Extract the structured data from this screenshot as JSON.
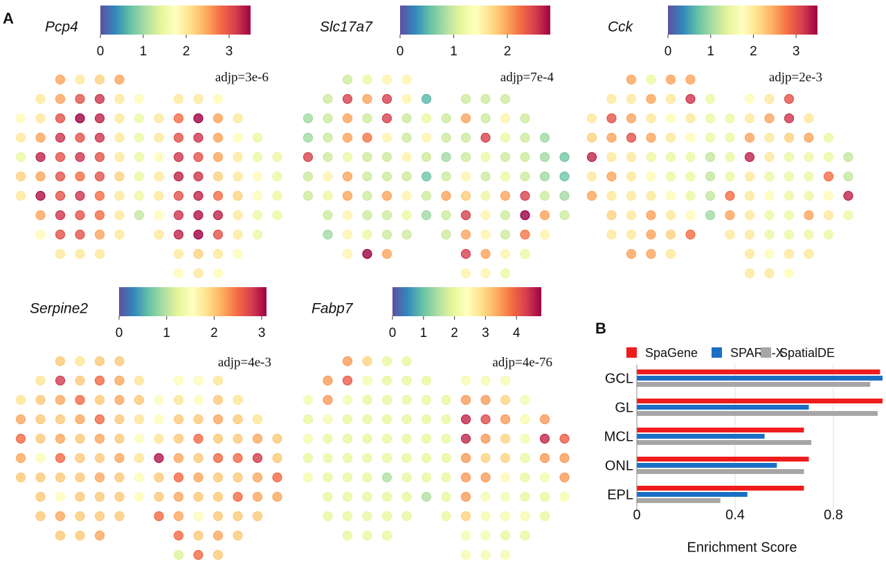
{
  "labels": {
    "a": "A",
    "b": "B"
  },
  "chart_data": [
    {
      "type": "spatial",
      "title": "Pcp4",
      "annotation": "adjp=3e-6",
      "clim": [
        0,
        3.5
      ],
      "cticks": [
        0,
        1,
        2,
        3
      ],
      "rows": [
        [
          null,
          null,
          2.5,
          2,
          2.2,
          2.5,
          null,
          null,
          null,
          null,
          null,
          null,
          null,
          null
        ],
        [
          null,
          2,
          2.5,
          3,
          3.2,
          2,
          1.8,
          null,
          2,
          2,
          1.8,
          null,
          null,
          null
        ],
        [
          1.8,
          2,
          3,
          3.5,
          3.3,
          2,
          1.5,
          2,
          2.8,
          3.5,
          2.5,
          2,
          null,
          null
        ],
        [
          2,
          2.5,
          3.2,
          3,
          3.2,
          2,
          1.5,
          2,
          3,
          3.2,
          2.5,
          1.8,
          1.5,
          null
        ],
        [
          1.5,
          3.3,
          3,
          3.2,
          3,
          2,
          1.5,
          1.8,
          3.2,
          3,
          2.5,
          2,
          1.5,
          1.5
        ],
        [
          2.2,
          2.5,
          3,
          2.8,
          3,
          2.2,
          1.5,
          2,
          3.3,
          3.2,
          2.2,
          2,
          1.8,
          1.5
        ],
        [
          2,
          3.4,
          3,
          3.2,
          2.8,
          2,
          1.5,
          2,
          3,
          3.3,
          2.8,
          2.2,
          1.8,
          1.5
        ],
        [
          null,
          2.5,
          3.2,
          3,
          2.8,
          2,
          1.2,
          1.8,
          3.2,
          3.4,
          3.3,
          2,
          1.5,
          1.5
        ],
        [
          null,
          1.8,
          3,
          3,
          2.5,
          2,
          null,
          2,
          3.3,
          3.5,
          3,
          2,
          1.5,
          null
        ],
        [
          null,
          null,
          2,
          2,
          2,
          null,
          null,
          null,
          2,
          2.2,
          2,
          1.8,
          null,
          null
        ],
        [
          null,
          null,
          null,
          null,
          null,
          null,
          null,
          null,
          1.8,
          2,
          1.8,
          null,
          null,
          null
        ]
      ]
    },
    {
      "type": "spatial",
      "title": "Slc17a7",
      "annotation": "adjp=7e-4",
      "clim": [
        0,
        2.8
      ],
      "cticks": [
        0,
        1,
        2
      ],
      "rows": [
        [
          null,
          null,
          1,
          1.2,
          1.5,
          1.5,
          null,
          null,
          null,
          null,
          null,
          null,
          null,
          null
        ],
        [
          null,
          1,
          2.5,
          2,
          2.5,
          1.5,
          0.5,
          null,
          1,
          1,
          1,
          null,
          null,
          null
        ],
        [
          0.8,
          1,
          2,
          1,
          2.5,
          1,
          1.2,
          1,
          2,
          1,
          1.5,
          1,
          null,
          null
        ],
        [
          0.8,
          1,
          2,
          2.2,
          1.5,
          1,
          1.5,
          1,
          1,
          2.5,
          1.2,
          1,
          0.8,
          null
        ],
        [
          2.5,
          1,
          1.2,
          1,
          1,
          1.5,
          1,
          0.8,
          1,
          1.2,
          1,
          1,
          0.8,
          0.6
        ],
        [
          1,
          1.5,
          2,
          1,
          1,
          1,
          0.6,
          1,
          1.5,
          1,
          1.2,
          1,
          0.8,
          0.6
        ],
        [
          1,
          1.2,
          2,
          1,
          2,
          1.5,
          1,
          2,
          1.8,
          1.2,
          2,
          2.5,
          1,
          0.8
        ],
        [
          null,
          1,
          1.5,
          1,
          1,
          1.2,
          0.8,
          1,
          2.5,
          1.5,
          1,
          2.8,
          2,
          1
        ],
        [
          null,
          0.8,
          1.5,
          1.2,
          1,
          1,
          null,
          1,
          2,
          1.5,
          1,
          2.2,
          1.5,
          null
        ],
        [
          null,
          null,
          1.5,
          2.8,
          2,
          null,
          null,
          null,
          2.5,
          2,
          1.5,
          1.2,
          null,
          null
        ],
        [
          null,
          null,
          null,
          null,
          null,
          null,
          null,
          null,
          1.5,
          1.5,
          1.2,
          null,
          null,
          null
        ]
      ]
    },
    {
      "type": "spatial",
      "title": "Cck",
      "annotation": "adjp=2e-3",
      "clim": [
        0,
        3.5
      ],
      "cticks": [
        0,
        1,
        2,
        3
      ],
      "rows": [
        [
          null,
          null,
          2.5,
          1.5,
          2.5,
          2.5,
          null,
          null,
          null,
          null,
          null,
          null,
          null,
          null
        ],
        [
          null,
          2,
          2,
          2.5,
          2,
          3.2,
          1.5,
          null,
          1.8,
          2,
          3,
          null,
          null,
          null
        ],
        [
          2,
          3,
          2.5,
          2,
          1.8,
          2,
          1.5,
          1.5,
          2,
          2.5,
          3.2,
          2,
          null,
          null
        ],
        [
          2.2,
          2.5,
          3,
          2.5,
          2,
          1.8,
          1.5,
          1.5,
          2.5,
          2,
          2.2,
          2.5,
          1.5,
          null
        ],
        [
          3.3,
          2,
          2,
          1.5,
          1.5,
          1.5,
          1.2,
          1.5,
          3.3,
          2,
          1.5,
          1.5,
          1.5,
          1.2
        ],
        [
          2,
          2.5,
          2,
          1.8,
          1.5,
          1.5,
          1.2,
          1.5,
          2,
          1.5,
          1.5,
          1.5,
          2.8,
          1.2
        ],
        [
          2.5,
          2,
          2,
          2,
          1.8,
          1.5,
          1.2,
          2.8,
          2,
          1.8,
          1.5,
          1.5,
          1.8,
          3.3
        ],
        [
          null,
          2.2,
          2,
          2.5,
          2,
          1.8,
          1,
          2.5,
          2,
          1.5,
          1.5,
          2.5,
          2,
          1.5
        ],
        [
          null,
          2,
          2,
          2.5,
          2.2,
          2.8,
          null,
          2,
          2,
          1.5,
          1.5,
          1.5,
          1.5,
          null
        ],
        [
          null,
          null,
          2.5,
          2.5,
          2,
          null,
          null,
          null,
          2,
          1.8,
          2,
          2,
          null,
          null
        ],
        [
          null,
          null,
          null,
          null,
          null,
          null,
          null,
          null,
          2,
          2,
          1.8,
          null,
          null,
          null
        ]
      ]
    },
    {
      "type": "spatial",
      "title": "Serpine2",
      "annotation": "adjp=4e-3",
      "clim": [
        0,
        3.1
      ],
      "cticks": [
        0,
        1,
        2,
        3
      ],
      "rows": [
        [
          null,
          null,
          2,
          1.8,
          2,
          2,
          null,
          null,
          null,
          null,
          null,
          null,
          null,
          null
        ],
        [
          null,
          1.8,
          2.8,
          2,
          2.5,
          2.2,
          1.8,
          null,
          1.5,
          1.5,
          1.8,
          null,
          null,
          null
        ],
        [
          1.8,
          2,
          2.2,
          2.5,
          2,
          2.2,
          2,
          1.5,
          1.8,
          1.5,
          2,
          1.8,
          null,
          null
        ],
        [
          2.2,
          2,
          2,
          2.2,
          2.5,
          2,
          1.8,
          1.5,
          2,
          2,
          2.2,
          2,
          1.8,
          null
        ],
        [
          2.5,
          2,
          2.2,
          2,
          2.2,
          2,
          1.5,
          1.8,
          2,
          2.5,
          2,
          2,
          2.2,
          2
        ],
        [
          2.2,
          1.5,
          2.5,
          2,
          2,
          2.2,
          1.8,
          3,
          2.2,
          2,
          2.5,
          2.5,
          2.8,
          2
        ],
        [
          2,
          2,
          2,
          2,
          2.2,
          2,
          1.5,
          2,
          2.5,
          2.2,
          2,
          2,
          2.2,
          2.5
        ],
        [
          null,
          2,
          1.5,
          2,
          2,
          2,
          1.5,
          2,
          2.2,
          2,
          2,
          2.5,
          2.2,
          2.2
        ],
        [
          null,
          2,
          2.2,
          2,
          2,
          2,
          null,
          2.5,
          2.2,
          1.5,
          2,
          2,
          2,
          null
        ],
        [
          null,
          null,
          2,
          2,
          2.2,
          null,
          null,
          null,
          2.5,
          2,
          2.2,
          2,
          null,
          null
        ],
        [
          null,
          null,
          null,
          null,
          null,
          null,
          null,
          null,
          1.2,
          2.5,
          2,
          null,
          null,
          null
        ]
      ]
    },
    {
      "type": "spatial",
      "title": "Fabp7",
      "annotation": "adjp=4e-76",
      "clim": [
        0,
        4.8
      ],
      "cticks": [
        0,
        1,
        2,
        3,
        4
      ],
      "rows": [
        [
          null,
          null,
          3.5,
          3,
          2,
          2,
          null,
          null,
          null,
          null,
          null,
          null,
          null,
          null
        ],
        [
          null,
          3.5,
          4,
          2.2,
          2,
          2,
          2,
          null,
          2.2,
          2.2,
          2.2,
          null,
          null,
          null
        ],
        [
          2.2,
          3.5,
          2.2,
          2,
          2,
          2,
          2,
          2,
          3.5,
          3.5,
          3,
          2.2,
          null,
          null
        ],
        [
          2,
          2.2,
          2,
          2,
          2,
          2,
          2,
          2,
          4.5,
          4.2,
          3.5,
          2.2,
          3.5,
          null
        ],
        [
          2.2,
          2,
          2,
          2,
          2,
          2,
          2,
          2,
          4.5,
          3.5,
          3,
          2.2,
          4.5,
          4
        ],
        [
          2,
          2,
          2,
          2,
          2,
          2,
          2,
          2,
          3.5,
          3,
          3,
          2,
          3.5,
          3.5
        ],
        [
          2.2,
          2,
          2,
          2,
          1.5,
          2,
          2,
          2,
          3.5,
          3.5,
          2.5,
          2,
          2.2,
          3.5
        ],
        [
          null,
          2,
          2,
          2,
          2,
          2,
          1.5,
          2,
          3.5,
          2.2,
          2.2,
          2,
          2,
          2.2
        ],
        [
          null,
          2,
          2,
          2,
          2,
          2,
          null,
          2,
          3,
          2.2,
          2.2,
          2.2,
          2,
          null
        ],
        [
          null,
          null,
          2,
          2,
          2,
          null,
          null,
          null,
          2.2,
          2.2,
          2,
          2,
          null,
          null
        ],
        [
          null,
          null,
          null,
          null,
          null,
          null,
          null,
          null,
          2.2,
          2.2,
          2.2,
          null,
          null,
          null
        ]
      ]
    },
    {
      "type": "bar",
      "orientation": "horizontal",
      "categories": [
        "GCL",
        "GL",
        "MCL",
        "ONL",
        "EPL"
      ],
      "series": [
        {
          "name": "SpaGene",
          "color": "#ee1c1c",
          "values": [
            0.99,
            1.0,
            0.68,
            0.7,
            0.68
          ]
        },
        {
          "name": "SPARK-X",
          "color": "#1a6fc4",
          "values": [
            1.0,
            0.7,
            0.52,
            0.57,
            0.45
          ]
        },
        {
          "name": "SpatialDE",
          "color": "#a6a6a6",
          "values": [
            0.95,
            0.98,
            0.71,
            0.68,
            0.34
          ]
        }
      ],
      "xlim": [
        0,
        1.0
      ],
      "xticks": [
        0,
        0.4,
        0.8
      ],
      "xlabel": "Enrichment Score",
      "grid": true
    }
  ]
}
